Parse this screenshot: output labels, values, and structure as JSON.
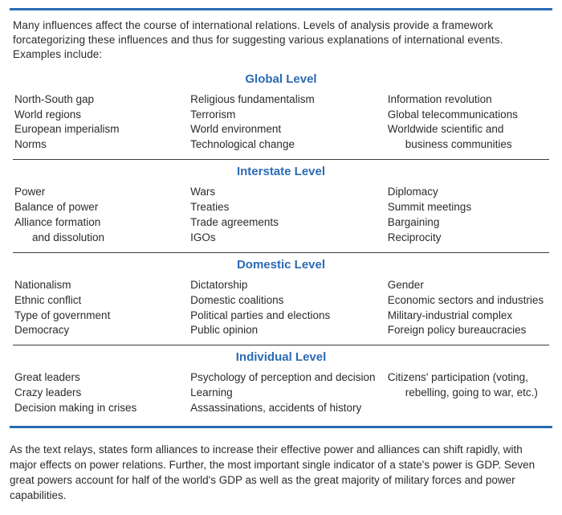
{
  "intro": "Many influences affect the course of international relations. Levels of analysis provide a framework forcategorizing these influences and thus for suggesting various explanations of international events. Examples include:",
  "colors": {
    "accent": "#2b6bb3",
    "text": "#2b2b2b",
    "rule": "#3b3b3b",
    "background": "#ffffff"
  },
  "levels": [
    {
      "title": "Global Level",
      "col1": [
        "North-South gap",
        "World regions",
        "European imperialism",
        "Norms"
      ],
      "col2": [
        "Religious fundamentalism",
        "Terrorism",
        "World environment",
        "Technological change"
      ],
      "col3": [
        "Information revolution",
        "Global telecommunications",
        "Worldwide scientific and",
        "    business communities"
      ]
    },
    {
      "title": "Interstate Level",
      "col1": [
        "Power",
        "Balance of power",
        "Alliance formation",
        "    and dissolution"
      ],
      "col2": [
        "Wars",
        "Treaties",
        "Trade agreements",
        "IGOs"
      ],
      "col3": [
        "Diplomacy",
        "Summit meetings",
        "Bargaining",
        "Reciprocity"
      ]
    },
    {
      "title": "Domestic Level",
      "col1": [
        "Nationalism",
        "Ethnic conflict",
        "Type of government",
        "Democracy"
      ],
      "col2": [
        "Dictatorship",
        "Domestic coalitions",
        "Political parties and elections",
        "Public opinion"
      ],
      "col3": [
        "Gender",
        "Economic sectors and industries",
        "Military-industrial complex",
        "Foreign policy bureaucracies"
      ]
    },
    {
      "title": "Individual Level",
      "col1": [
        "Great leaders",
        "Crazy leaders",
        "Decision making in crises"
      ],
      "col2": [
        "Psychology of perception and decision",
        "Learning",
        "Assassinations, accidents of history"
      ],
      "col3": [
        "Citizens' participation (voting,",
        "    rebelling, going to war, etc.)"
      ]
    }
  ],
  "footnote": "As the text relays, states form alliances to increase their effective power and alliances can shift rapidly, with major effects on power relations. Further, the most important single indicator of a state's power is GDP. Seven great powers account for half of the world's GDP as well as the great majority of military forces and power capabilities."
}
